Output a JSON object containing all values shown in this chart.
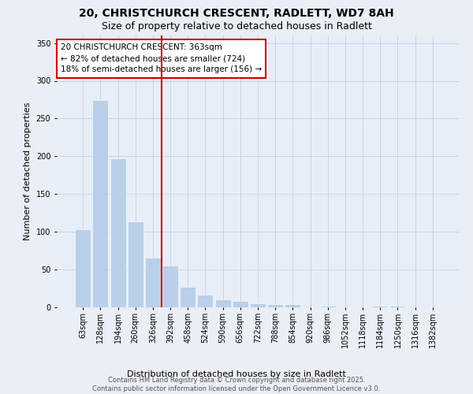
{
  "title_line1": "20, CHRISTCHURCH CRESCENT, RADLETT, WD7 8AH",
  "title_line2": "Size of property relative to detached houses in Radlett",
  "xlabel": "Distribution of detached houses by size in Radlett",
  "ylabel": "Number of detached properties",
  "categories": [
    "63sqm",
    "128sqm",
    "194sqm",
    "260sqm",
    "326sqm",
    "392sqm",
    "458sqm",
    "524sqm",
    "590sqm",
    "656sqm",
    "722sqm",
    "788sqm",
    "854sqm",
    "920sqm",
    "986sqm",
    "1052sqm",
    "1118sqm",
    "1184sqm",
    "1250sqm",
    "1316sqm",
    "1382sqm"
  ],
  "values": [
    103,
    274,
    197,
    114,
    66,
    55,
    27,
    17,
    10,
    8,
    5,
    4,
    4,
    0,
    2,
    0,
    0,
    2,
    2,
    0,
    0
  ],
  "bar_color": "#b8d0e8",
  "grid_color": "#c8d4e4",
  "background_color": "#e8eef8",
  "fig_background": "#eaeef5",
  "vline_color": "#cc0000",
  "vline_x_index": 4.5,
  "annotation_text": "20 CHRISTCHURCH CRESCENT: 363sqm\n← 82% of detached houses are smaller (724)\n18% of semi-detached houses are larger (156) →",
  "annotation_box_color": "#cc0000",
  "ylim": [
    0,
    360
  ],
  "yticks": [
    0,
    50,
    100,
    150,
    200,
    250,
    300,
    350
  ],
  "footer_text": "Contains HM Land Registry data © Crown copyright and database right 2025.\nContains public sector information licensed under the Open Government Licence v3.0.",
  "title_fontsize": 10,
  "subtitle_fontsize": 9,
  "axis_label_fontsize": 8,
  "tick_fontsize": 7,
  "annotation_fontsize": 7.5,
  "footer_fontsize": 6
}
